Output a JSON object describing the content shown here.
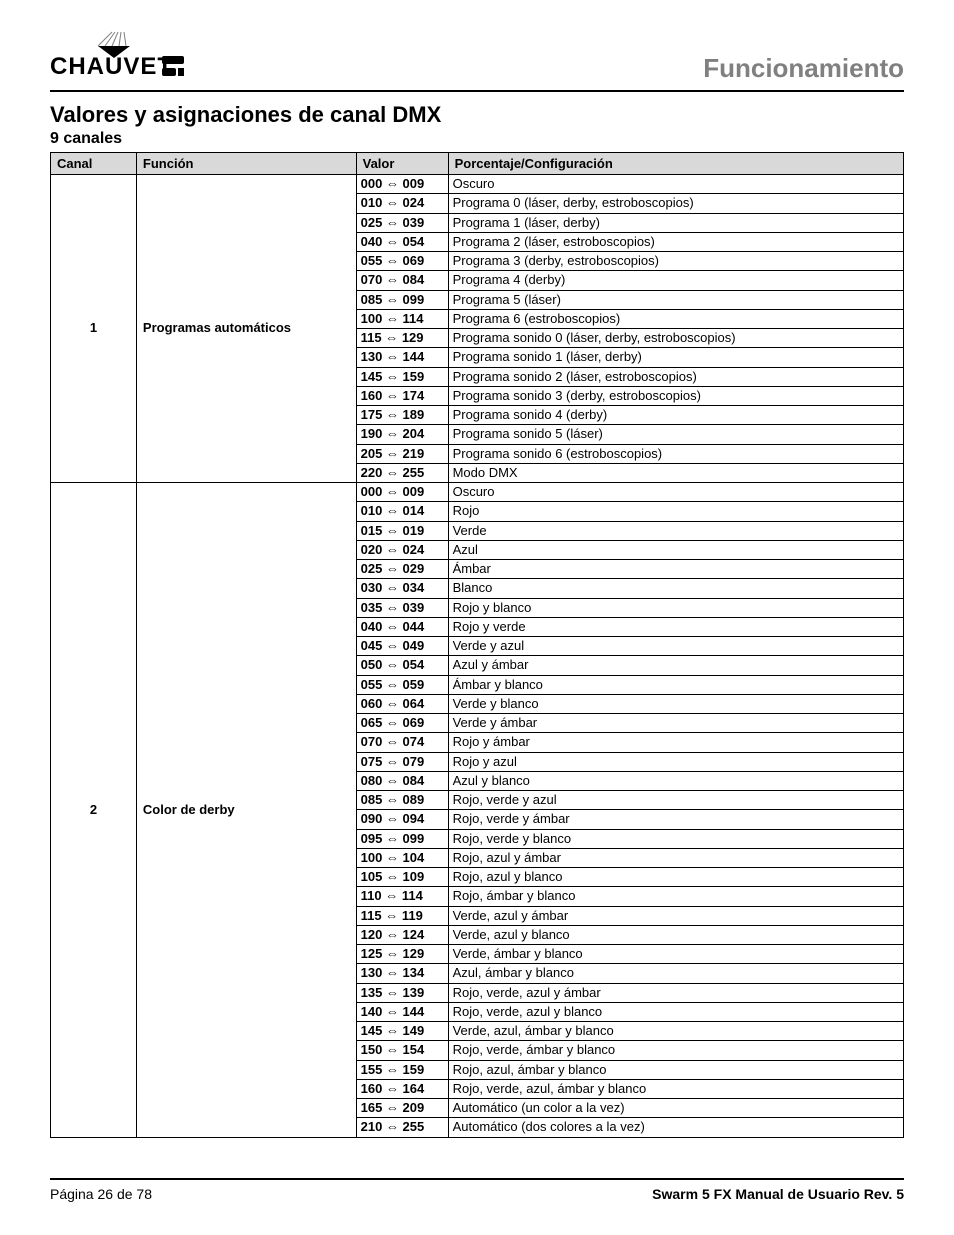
{
  "header": {
    "section": "Funcionamiento"
  },
  "titles": {
    "main": "Valores y asignaciones de canal DMX",
    "sub": "9 canales"
  },
  "table": {
    "headers": {
      "canal": "Canal",
      "funcion": "Función",
      "valor": "Valor",
      "config": "Porcentaje/Configuración"
    },
    "col_widths": {
      "canal": 86,
      "funcion": 220,
      "valor": 92,
      "config": 456
    },
    "groups": [
      {
        "canal": "1",
        "funcion": "Programas automáticos",
        "rows": [
          {
            "lo": "000",
            "hi": "009",
            "cfg": "Oscuro"
          },
          {
            "lo": "010",
            "hi": "024",
            "cfg": "Programa 0 (láser, derby, estroboscopios)"
          },
          {
            "lo": "025",
            "hi": "039",
            "cfg": "Programa 1 (láser, derby)"
          },
          {
            "lo": "040",
            "hi": "054",
            "cfg": "Programa 2 (láser, estroboscopios)"
          },
          {
            "lo": "055",
            "hi": "069",
            "cfg": "Programa 3 (derby, estroboscopios)"
          },
          {
            "lo": "070",
            "hi": "084",
            "cfg": "Programa 4 (derby)"
          },
          {
            "lo": "085",
            "hi": "099",
            "cfg": "Programa 5 (láser)"
          },
          {
            "lo": "100",
            "hi": "114",
            "cfg": "Programa 6 (estroboscopios)"
          },
          {
            "lo": "115",
            "hi": "129",
            "cfg": "Programa sonido 0 (láser, derby, estroboscopios)"
          },
          {
            "lo": "130",
            "hi": "144",
            "cfg": "Programa sonido 1 (láser, derby)"
          },
          {
            "lo": "145",
            "hi": "159",
            "cfg": "Programa sonido 2 (láser, estroboscopios)"
          },
          {
            "lo": "160",
            "hi": "174",
            "cfg": "Programa sonido 3 (derby, estroboscopios)"
          },
          {
            "lo": "175",
            "hi": "189",
            "cfg": "Programa sonido 4 (derby)"
          },
          {
            "lo": "190",
            "hi": "204",
            "cfg": "Programa sonido 5 (láser)"
          },
          {
            "lo": "205",
            "hi": "219",
            "cfg": "Programa sonido 6 (estroboscopios)"
          },
          {
            "lo": "220",
            "hi": "255",
            "cfg": "Modo DMX"
          }
        ]
      },
      {
        "canal": "2",
        "funcion": "Color de derby",
        "rows": [
          {
            "lo": "000",
            "hi": "009",
            "cfg": "Oscuro"
          },
          {
            "lo": "010",
            "hi": "014",
            "cfg": "Rojo"
          },
          {
            "lo": "015",
            "hi": "019",
            "cfg": "Verde"
          },
          {
            "lo": "020",
            "hi": "024",
            "cfg": "Azul"
          },
          {
            "lo": "025",
            "hi": "029",
            "cfg": "Ámbar"
          },
          {
            "lo": "030",
            "hi": "034",
            "cfg": "Blanco"
          },
          {
            "lo": "035",
            "hi": "039",
            "cfg": "Rojo y blanco"
          },
          {
            "lo": "040",
            "hi": "044",
            "cfg": "Rojo y verde"
          },
          {
            "lo": "045",
            "hi": "049",
            "cfg": "Verde y azul"
          },
          {
            "lo": "050",
            "hi": "054",
            "cfg": "Azul y ámbar"
          },
          {
            "lo": "055",
            "hi": "059",
            "cfg": "Ámbar y blanco"
          },
          {
            "lo": "060",
            "hi": "064",
            "cfg": "Verde y blanco"
          },
          {
            "lo": "065",
            "hi": "069",
            "cfg": "Verde y ámbar"
          },
          {
            "lo": "070",
            "hi": "074",
            "cfg": "Rojo y ámbar"
          },
          {
            "lo": "075",
            "hi": "079",
            "cfg": "Rojo y azul"
          },
          {
            "lo": "080",
            "hi": "084",
            "cfg": "Azul y blanco"
          },
          {
            "lo": "085",
            "hi": "089",
            "cfg": "Rojo, verde y azul"
          },
          {
            "lo": "090",
            "hi": "094",
            "cfg": "Rojo, verde y ámbar"
          },
          {
            "lo": "095",
            "hi": "099",
            "cfg": "Rojo, verde y blanco"
          },
          {
            "lo": "100",
            "hi": "104",
            "cfg": "Rojo, azul y ámbar"
          },
          {
            "lo": "105",
            "hi": "109",
            "cfg": "Rojo, azul y blanco"
          },
          {
            "lo": "110",
            "hi": "114",
            "cfg": "Rojo, ámbar y blanco"
          },
          {
            "lo": "115",
            "hi": "119",
            "cfg": "Verde, azul y ámbar"
          },
          {
            "lo": "120",
            "hi": "124",
            "cfg": "Verde, azul y blanco"
          },
          {
            "lo": "125",
            "hi": "129",
            "cfg": "Verde, ámbar y blanco"
          },
          {
            "lo": "130",
            "hi": "134",
            "cfg": "Azul, ámbar y blanco"
          },
          {
            "lo": "135",
            "hi": "139",
            "cfg": "Rojo, verde, azul y ámbar"
          },
          {
            "lo": "140",
            "hi": "144",
            "cfg": "Rojo, verde, azul y blanco"
          },
          {
            "lo": "145",
            "hi": "149",
            "cfg": "Verde, azul, ámbar y blanco"
          },
          {
            "lo": "150",
            "hi": "154",
            "cfg": "Rojo, verde, ámbar y blanco"
          },
          {
            "lo": "155",
            "hi": "159",
            "cfg": "Rojo, azul, ámbar y blanco"
          },
          {
            "lo": "160",
            "hi": "164",
            "cfg": "Rojo, verde, azul, ámbar y blanco"
          },
          {
            "lo": "165",
            "hi": "209",
            "cfg": "Automático (un color a la vez)"
          },
          {
            "lo": "210",
            "hi": "255",
            "cfg": "Automático (dos colores a la vez)"
          }
        ]
      }
    ]
  },
  "footer": {
    "left": "Página 26 de 78",
    "right": "Swarm 5 FX Manual de Usuario Rev. 5"
  },
  "style": {
    "header_bg": "#d9d9d9",
    "border_color": "#000000",
    "section_color": "#808080",
    "font_size_body": 13,
    "font_size_section": 26,
    "arrow_glyph": "⇔"
  }
}
